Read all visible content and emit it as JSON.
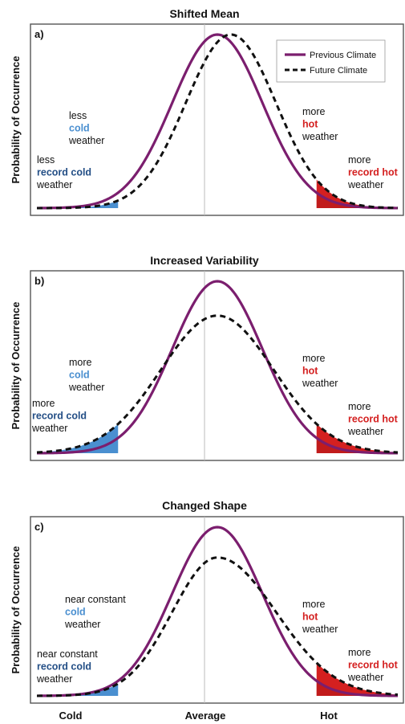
{
  "colors": {
    "previous": "#7b1e6e",
    "future": "#111111",
    "hot": "#d42020",
    "cold": "#4a8fd0",
    "record_cold_text": "#244f86",
    "cold_text": "#4a8fd0",
    "hot_text": "#d42020",
    "frame": "#555555",
    "center_line": "#bbbbbb"
  },
  "y_axis_label": "Probability of Occurrence",
  "x_axis": {
    "cold": "Cold",
    "average": "Average",
    "hot": "Hot"
  },
  "legend": {
    "previous": "Previous Climate",
    "future": "Future Climate",
    "placement": "top-right of panel a"
  },
  "chart_data": [
    {
      "type": "line",
      "panel": "a)",
      "title": "Shifted Mean",
      "x_range": [
        -4,
        4
      ],
      "series": [
        {
          "name": "Previous Climate",
          "style": "solid",
          "mean": 0,
          "sd": 1,
          "peak": 1
        },
        {
          "name": "Future Climate",
          "style": "dashed",
          "mean": 0.3,
          "sd": 1,
          "peak": 1
        }
      ],
      "shaded_tails": {
        "cold_below": -2.2,
        "hot_above": 2.2
      },
      "annotations": {
        "cold": [
          "less",
          "cold",
          "weather"
        ],
        "record_cold": [
          "less",
          "record cold",
          "weather"
        ],
        "hot": [
          "more",
          "hot",
          "weather"
        ],
        "record_hot": [
          "more",
          "record hot",
          "weather"
        ]
      }
    },
    {
      "type": "line",
      "panel": "b)",
      "title": "Increased Variability",
      "x_range": [
        -4,
        4
      ],
      "series": [
        {
          "name": "Previous Climate",
          "style": "solid",
          "mean": 0,
          "sd": 1,
          "peak": 1
        },
        {
          "name": "Future Climate",
          "style": "dashed",
          "mean": 0,
          "sd": 1.25,
          "peak": 0.8
        }
      ],
      "shaded_tails": {
        "cold_below": -2.2,
        "hot_above": 2.2
      },
      "annotations": {
        "cold": [
          "more",
          "cold",
          "weather"
        ],
        "record_cold": [
          "more",
          "record cold",
          "weather"
        ],
        "hot": [
          "more",
          "hot",
          "weather"
        ],
        "record_hot": [
          "more",
          "record hot",
          "weather"
        ]
      }
    },
    {
      "type": "line",
      "panel": "c)",
      "title": "Changed Shape",
      "x_range": [
        -4,
        4
      ],
      "series": [
        {
          "name": "Previous Climate",
          "style": "solid",
          "mean": 0,
          "sd": 1,
          "peak": 1
        },
        {
          "name": "Future Climate",
          "style": "dashed",
          "mean": 0,
          "sd_left": 1,
          "sd_right": 1.3,
          "peak": 0.82
        }
      ],
      "shaded_tails": {
        "cold_below": -2.2,
        "hot_above": 2.2
      },
      "annotations": {
        "cold": [
          "near constant",
          "cold",
          "weather"
        ],
        "record_cold": [
          "near constant",
          "record cold",
          "weather"
        ],
        "hot": [
          "more",
          "hot",
          "weather"
        ],
        "record_hot": [
          "more",
          "record hot",
          "weather"
        ]
      }
    }
  ]
}
